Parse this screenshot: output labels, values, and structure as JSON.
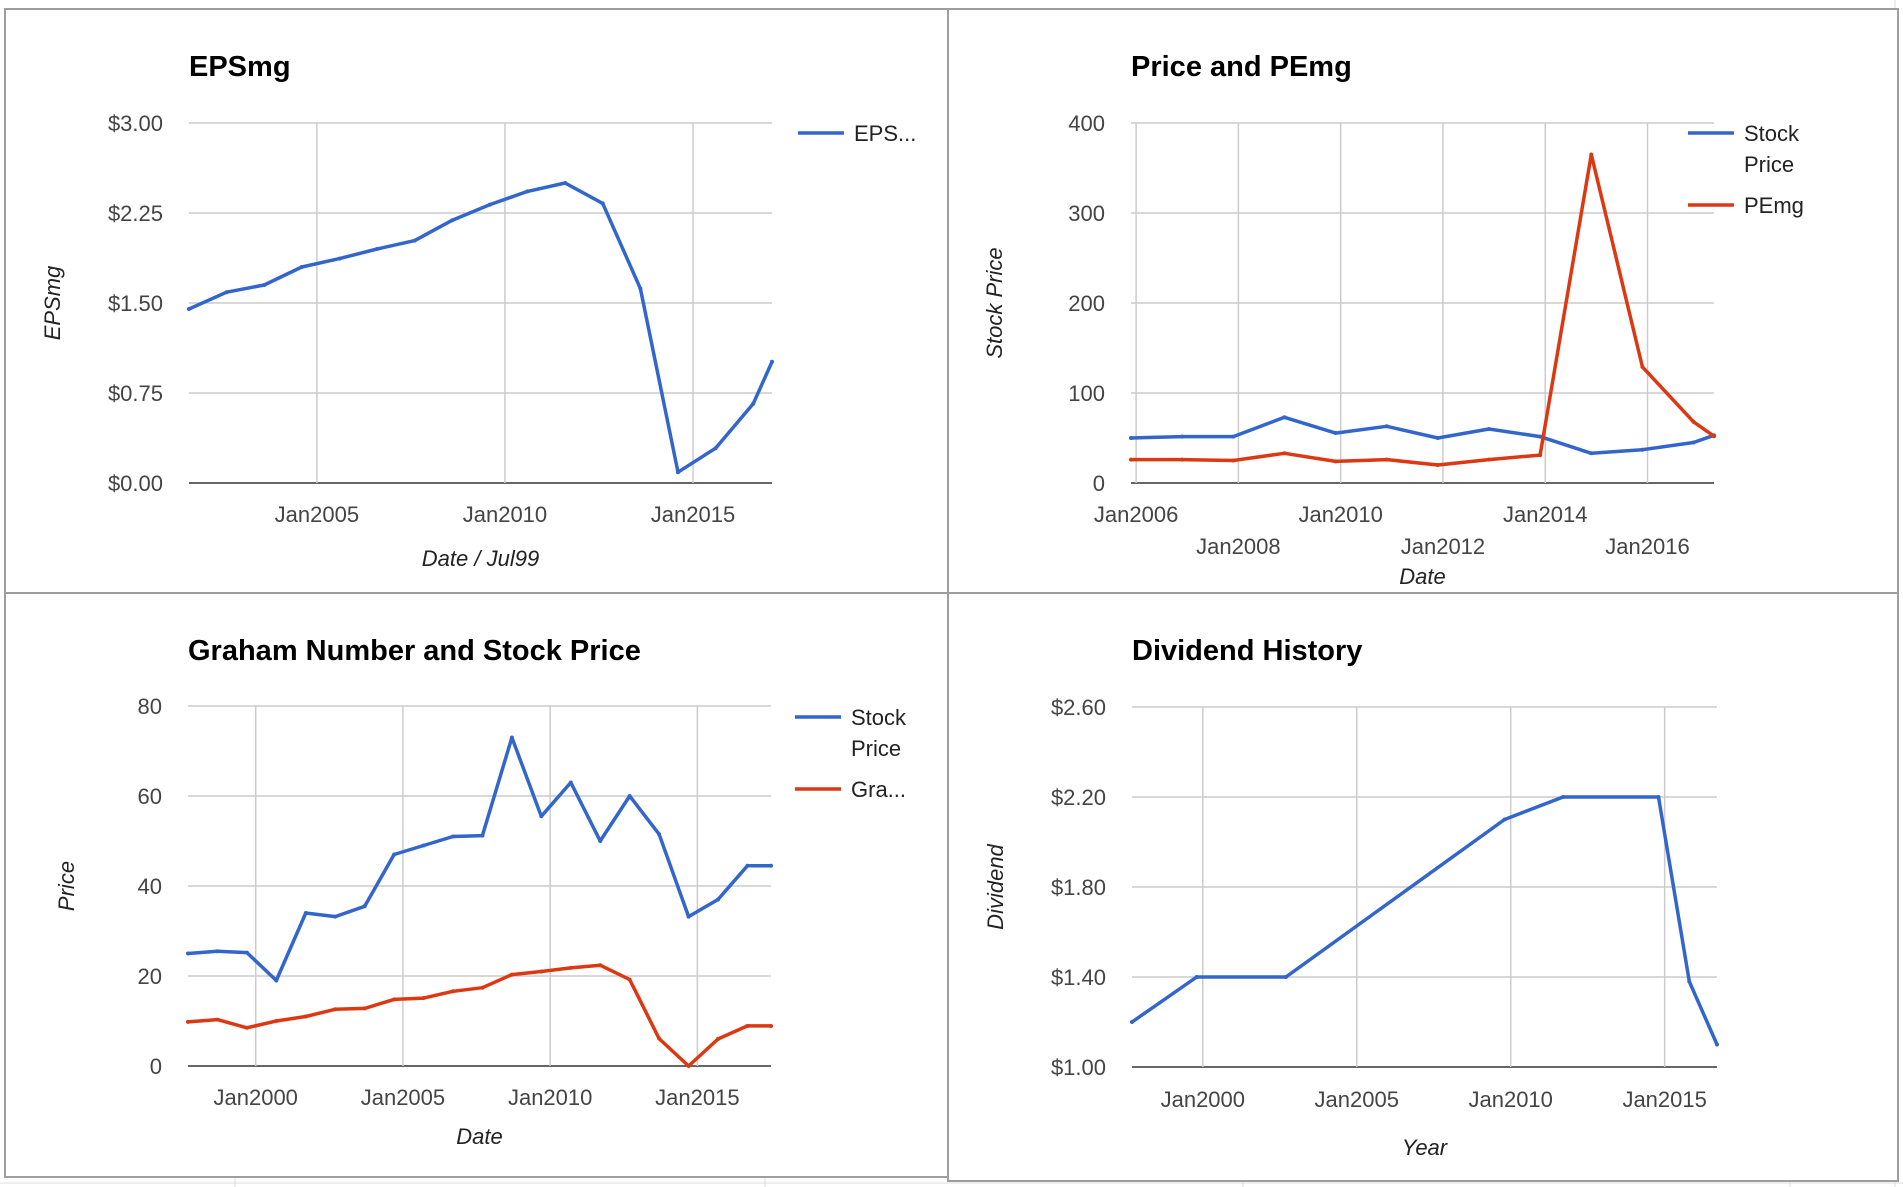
{
  "chart_data": [
    {
      "id": "eps",
      "type": "line",
      "title": "EPSmg",
      "xlabel": "Date / Jul99",
      "ylabel": "EPSmg",
      "xlim": [
        2001.6,
        2017.1
      ],
      "ylim": [
        0,
        3
      ],
      "yticks": [
        {
          "v": 0,
          "label": "$0.00"
        },
        {
          "v": 0.75,
          "label": "$0.75"
        },
        {
          "v": 1.5,
          "label": "$1.50"
        },
        {
          "v": 2.25,
          "label": "$2.25"
        },
        {
          "v": 3,
          "label": "$3.00"
        }
      ],
      "xticks": [
        {
          "v": 2005,
          "label": "Jan2005",
          "row": 0
        },
        {
          "v": 2010,
          "label": "Jan2010",
          "row": 0
        },
        {
          "v": 2015,
          "label": "Jan2015",
          "row": 0
        }
      ],
      "grid": true,
      "legend_position": "right",
      "series": [
        {
          "name": "EPS...",
          "color": "#3366cc",
          "x": [
            2001.6,
            2002.6,
            2003.6,
            2004.6,
            2005.6,
            2006.6,
            2007.6,
            2008.6,
            2009.6,
            2010.6,
            2011.6,
            2012.6,
            2013.6,
            2014.6,
            2015.6,
            2016.6,
            2017.1
          ],
          "y": [
            1.45,
            1.59,
            1.65,
            1.8,
            1.87,
            1.95,
            2.02,
            2.19,
            2.32,
            2.43,
            2.5,
            2.33,
            1.62,
            0.09,
            0.29,
            0.66,
            1.01
          ]
        }
      ]
    },
    {
      "id": "price-pe",
      "type": "line",
      "title": "Price and PEmg",
      "xlabel": "Date",
      "ylabel": "Stock Price",
      "xlim": [
        2005.9,
        2017.3
      ],
      "ylim": [
        0,
        400
      ],
      "yticks": [
        {
          "v": 0,
          "label": "0"
        },
        {
          "v": 100,
          "label": "100"
        },
        {
          "v": 200,
          "label": "200"
        },
        {
          "v": 300,
          "label": "300"
        },
        {
          "v": 400,
          "label": "400"
        }
      ],
      "xticks": [
        {
          "v": 2006,
          "label": "Jan2006",
          "row": 0
        },
        {
          "v": 2008,
          "label": "Jan2008",
          "row": 1
        },
        {
          "v": 2010,
          "label": "Jan2010",
          "row": 0
        },
        {
          "v": 2012,
          "label": "Jan2012",
          "row": 1
        },
        {
          "v": 2014,
          "label": "Jan2014",
          "row": 0
        },
        {
          "v": 2016,
          "label": "Jan2016",
          "row": 1
        }
      ],
      "grid": true,
      "legend_position": "right",
      "series": [
        {
          "name": "Stock Price",
          "color": "#3366cc",
          "x": [
            2005.9,
            2006.9,
            2007.9,
            2008.9,
            2009.9,
            2010.9,
            2011.9,
            2012.9,
            2013.9,
            2014.9,
            2015.9,
            2016.9,
            2017.3
          ],
          "y": [
            50,
            51.5,
            51.5,
            73,
            55.5,
            63,
            50,
            60,
            51.5,
            33,
            37,
            45,
            53
          ]
        },
        {
          "name": "PEmg",
          "color": "#dc3912",
          "x": [
            2005.9,
            2006.9,
            2007.9,
            2008.9,
            2009.9,
            2010.9,
            2011.9,
            2012.9,
            2013.9,
            2014.9,
            2015.9,
            2016.9,
            2017.3
          ],
          "y": [
            26,
            26,
            25,
            33,
            24,
            26,
            20,
            26,
            31,
            365,
            129,
            68,
            52
          ]
        }
      ]
    },
    {
      "id": "graham",
      "type": "line",
      "title": "Graham Number and Stock Price",
      "xlabel": "Date",
      "ylabel": "Price",
      "xlim": [
        1997.7,
        2017.5
      ],
      "ylim": [
        0,
        80
      ],
      "yticks": [
        {
          "v": 0,
          "label": "0"
        },
        {
          "v": 20,
          "label": "20"
        },
        {
          "v": 40,
          "label": "40"
        },
        {
          "v": 60,
          "label": "60"
        },
        {
          "v": 80,
          "label": "80"
        }
      ],
      "xticks": [
        {
          "v": 2000,
          "label": "Jan2000",
          "row": 0
        },
        {
          "v": 2005,
          "label": "Jan2005",
          "row": 0
        },
        {
          "v": 2010,
          "label": "Jan2010",
          "row": 0
        },
        {
          "v": 2015,
          "label": "Jan2015",
          "row": 0
        }
      ],
      "grid": true,
      "legend_position": "right",
      "series": [
        {
          "name": "Stock Price",
          "color": "#3366cc",
          "x": [
            1997.7,
            1998.7,
            1999.7,
            2000.7,
            2001.7,
            2002.7,
            2003.7,
            2004.7,
            2005.7,
            2006.7,
            2007.7,
            2008.7,
            2009.7,
            2010.7,
            2011.7,
            2012.7,
            2013.7,
            2014.7,
            2015.7,
            2016.7,
            2017.5
          ],
          "y": [
            25,
            25.5,
            25.2,
            19,
            34,
            33.2,
            35.5,
            47,
            49,
            51,
            51.2,
            73,
            55.5,
            63,
            50,
            60,
            51.5,
            33.2,
            37,
            44.5,
            44.5
          ]
        },
        {
          "name": "Gra...",
          "color": "#dc3912",
          "x": [
            1997.7,
            1998.7,
            1999.7,
            2000.7,
            2001.7,
            2002.7,
            2003.7,
            2004.7,
            2005.7,
            2006.7,
            2007.7,
            2008.7,
            2009.7,
            2010.7,
            2011.7,
            2012.7,
            2013.7,
            2014.7,
            2015.7,
            2016.7,
            2017.5
          ],
          "y": [
            9.8,
            10.3,
            8.5,
            10,
            11,
            12.6,
            12.8,
            14.8,
            15.1,
            16.6,
            17.4,
            20.3,
            21,
            21.8,
            22.4,
            19.2,
            6.1,
            0,
            6,
            8.9,
            8.9
          ]
        }
      ]
    },
    {
      "id": "dividend",
      "type": "line",
      "title": "Dividend History",
      "xlabel": "Year",
      "ylabel": "Dividend",
      "xlim": [
        1997.7,
        2016.7
      ],
      "ylim": [
        1,
        2.6
      ],
      "yticks": [
        {
          "v": 1,
          "label": "$1.00"
        },
        {
          "v": 1.4,
          "label": "$1.40"
        },
        {
          "v": 1.8,
          "label": "$1.80"
        },
        {
          "v": 2.2,
          "label": "$2.20"
        },
        {
          "v": 2.6,
          "label": "$2.60"
        }
      ],
      "xticks": [
        {
          "v": 2000,
          "label": "Jan2000",
          "row": 0
        },
        {
          "v": 2005,
          "label": "Jan2005",
          "row": 0
        },
        {
          "v": 2010,
          "label": "Jan2010",
          "row": 0
        },
        {
          "v": 2015,
          "label": "Jan2015",
          "row": 0
        }
      ],
      "grid": true,
      "legend_position": "none",
      "series": [
        {
          "name": "",
          "color": "#3366cc",
          "x": [
            1997.7,
            1999.8,
            2002.7,
            2009.8,
            2011.7,
            2014.8,
            2015.8,
            2016.7
          ],
          "y": [
            1.2,
            1.4,
            1.4,
            2.1,
            2.2,
            2.2,
            1.38,
            1.1
          ]
        }
      ]
    }
  ]
}
